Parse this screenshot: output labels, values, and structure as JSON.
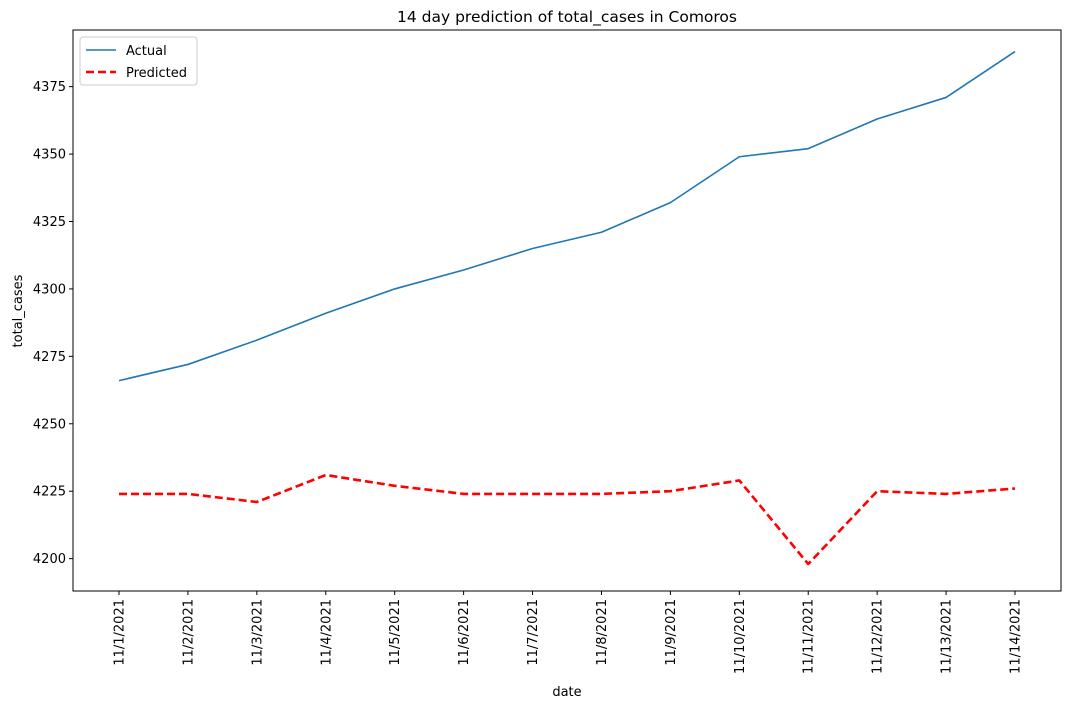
{
  "chart_data": {
    "type": "line",
    "title": "14 day prediction of total_cases in Comoros",
    "xlabel": "date",
    "ylabel": "total_cases",
    "categories": [
      "11/1/2021",
      "11/2/2021",
      "11/3/2021",
      "11/4/2021",
      "11/5/2021",
      "11/6/2021",
      "11/7/2021",
      "11/8/2021",
      "11/9/2021",
      "11/10/2021",
      "11/11/2021",
      "11/12/2021",
      "11/13/2021",
      "11/14/2021"
    ],
    "ylim": [
      4188,
      4396
    ],
    "yticks": [
      4200,
      4225,
      4250,
      4275,
      4300,
      4325,
      4350,
      4375
    ],
    "grid": false,
    "legend_position": "top-left",
    "series": [
      {
        "name": "Actual",
        "color": "#1f77b4",
        "style": "solid",
        "values": [
          4266,
          4272,
          4281,
          4291,
          4300,
          4307,
          4315,
          4321,
          4332,
          4349,
          4352,
          4363,
          4371,
          4388
        ]
      },
      {
        "name": "Predicted",
        "color": "#ff0000",
        "style": "dashed",
        "values": [
          4224,
          4224,
          4221,
          4231,
          4227,
          4224,
          4224,
          4224,
          4225,
          4229,
          4198,
          4225,
          4224,
          4226
        ]
      }
    ]
  }
}
